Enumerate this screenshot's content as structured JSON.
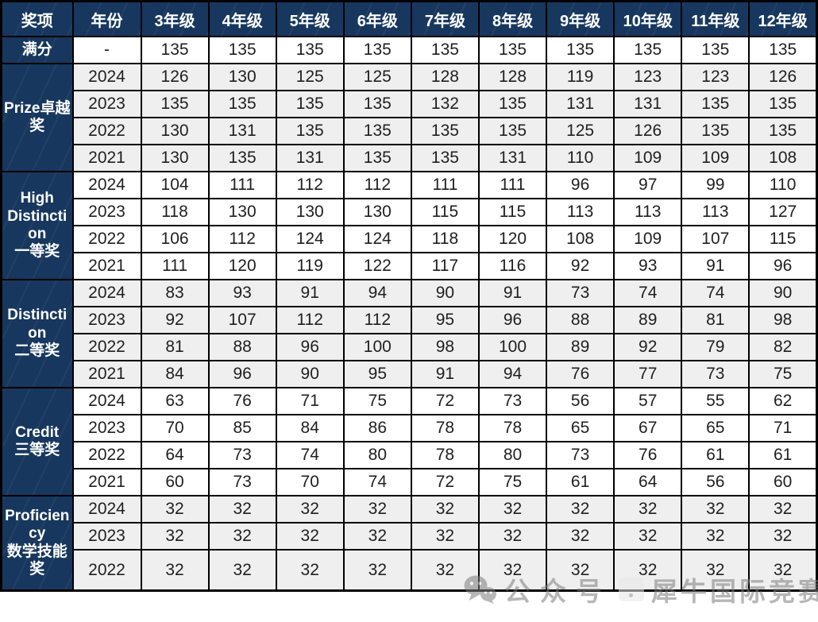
{
  "accent_colors": {
    "header_bg": "#17375E",
    "header_text": "#ffffff",
    "shade_row_bg": "#efefef",
    "border": "#000000",
    "watermark_gray": "#7d7d7d"
  },
  "chart_data": {
    "type": "table",
    "columns": [
      "奖项",
      "年份",
      "3年级",
      "4年级",
      "5年级",
      "6年级",
      "7年级",
      "8年级",
      "9年级",
      "10年级",
      "11年级",
      "12年级"
    ],
    "full_score": {
      "label": "满分",
      "year": "-",
      "values": [
        135,
        135,
        135,
        135,
        135,
        135,
        135,
        135,
        135,
        135
      ]
    },
    "sections": [
      {
        "label": "Prize卓越奖",
        "rows": [
          {
            "year": "2024",
            "values": [
              126,
              130,
              125,
              125,
              128,
              128,
              119,
              123,
              123,
              126
            ]
          },
          {
            "year": "2023",
            "values": [
              135,
              135,
              135,
              135,
              132,
              135,
              131,
              131,
              135,
              135
            ]
          },
          {
            "year": "2022",
            "values": [
              130,
              131,
              135,
              135,
              135,
              135,
              125,
              126,
              135,
              135
            ]
          },
          {
            "year": "2021",
            "values": [
              130,
              135,
              131,
              135,
              135,
              131,
              110,
              109,
              109,
              108
            ]
          }
        ]
      },
      {
        "label": "High Distinction\n一等奖",
        "rows": [
          {
            "year": "2024",
            "values": [
              104,
              111,
              112,
              112,
              111,
              111,
              96,
              97,
              99,
              110
            ]
          },
          {
            "year": "2023",
            "values": [
              118,
              130,
              130,
              130,
              115,
              115,
              113,
              113,
              113,
              127
            ]
          },
          {
            "year": "2022",
            "values": [
              106,
              112,
              124,
              124,
              118,
              120,
              108,
              109,
              107,
              115
            ]
          },
          {
            "year": "2021",
            "values": [
              111,
              120,
              119,
              122,
              117,
              116,
              92,
              93,
              91,
              96
            ]
          }
        ]
      },
      {
        "label": "Distinction\n二等奖",
        "rows": [
          {
            "year": "2024",
            "values": [
              83,
              93,
              91,
              94,
              90,
              91,
              73,
              74,
              74,
              90
            ]
          },
          {
            "year": "2023",
            "values": [
              92,
              107,
              112,
              112,
              95,
              96,
              88,
              89,
              81,
              98
            ]
          },
          {
            "year": "2022",
            "values": [
              81,
              88,
              96,
              100,
              98,
              100,
              89,
              92,
              79,
              82
            ]
          },
          {
            "year": "2021",
            "values": [
              84,
              96,
              90,
              95,
              91,
              94,
              76,
              77,
              73,
              75
            ]
          }
        ]
      },
      {
        "label": "Credit\n三等奖",
        "rows": [
          {
            "year": "2024",
            "values": [
              63,
              76,
              71,
              75,
              72,
              73,
              56,
              57,
              55,
              62
            ]
          },
          {
            "year": "2023",
            "values": [
              70,
              85,
              84,
              86,
              78,
              78,
              65,
              67,
              65,
              71
            ]
          },
          {
            "year": "2022",
            "values": [
              64,
              73,
              74,
              80,
              78,
              80,
              73,
              76,
              61,
              61
            ]
          },
          {
            "year": "2021",
            "values": [
              60,
              73,
              70,
              74,
              72,
              75,
              61,
              64,
              56,
              60
            ]
          }
        ]
      },
      {
        "label": "Proficiency\n数学技能奖",
        "rows": [
          {
            "year": "2024",
            "values": [
              32,
              32,
              32,
              32,
              32,
              32,
              32,
              32,
              32,
              32
            ]
          },
          {
            "year": "2023",
            "values": [
              32,
              32,
              32,
              32,
              32,
              32,
              32,
              32,
              32,
              32
            ]
          },
          {
            "year": "2022",
            "values": [
              32,
              32,
              32,
              32,
              32,
              32,
              32,
              32,
              32,
              32
            ]
          }
        ]
      }
    ]
  },
  "watermark": {
    "icon": "wechat-icon",
    "text": "公众号",
    "brand": "犀牛国际竞赛"
  }
}
